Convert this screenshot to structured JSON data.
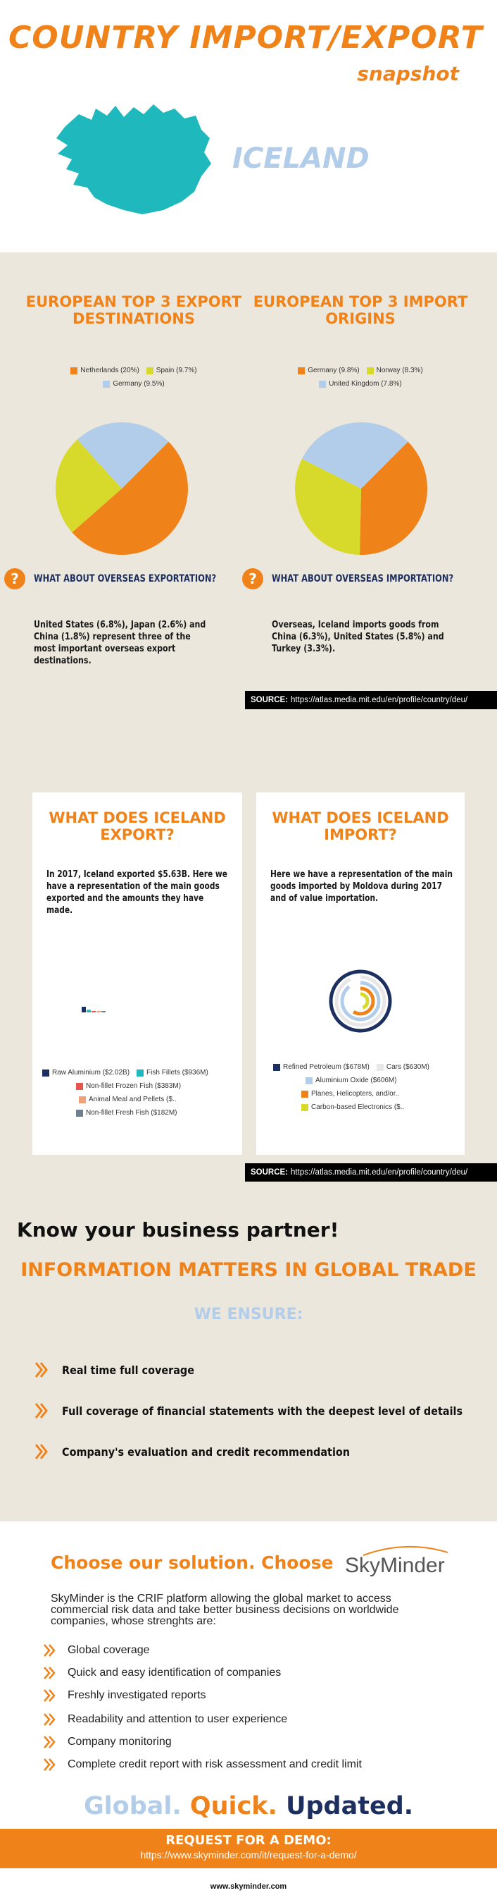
{
  "header": {
    "title": "COUNTRY IMPORT/EXPORT",
    "subtitle": "snapshot",
    "country": "ICELAND"
  },
  "colors": {
    "orange": "#f0821a",
    "yellow": "#d7d92b",
    "lightblue": "#b2cdea",
    "navy": "#1c2f5e",
    "teal": "#1fb9bd",
    "beige": "#ece7dc"
  },
  "export_destinations": {
    "title": "EUROPEAN TOP 3 EXPORT DESTINATIONS",
    "legend": [
      {
        "label": "Netherlands (20%)",
        "color": "#f0821a"
      },
      {
        "label": "Spain (9.7%)",
        "color": "#d7d92b"
      },
      {
        "label": "Germany (9.5%)",
        "color": "#b2cdea"
      }
    ],
    "question": "WHAT ABOUT OVERSEAS EXPORTATION?",
    "text": "United States (6.8%), Japan (2.6%) and China (1.8%) represent three of the most important overseas export destinations."
  },
  "import_origins": {
    "title": "EUROPEAN TOP 3 IMPORT ORIGINS",
    "legend": [
      {
        "label": "Germany (9.8%)",
        "color": "#f0821a"
      },
      {
        "label": "Norway (8.3%)",
        "color": "#d7d92b"
      },
      {
        "label": "United Kingdom (7.8%)",
        "color": "#b2cdea"
      }
    ],
    "question": "WHAT ABOUT OVERSEAS IMPORTATION?",
    "text": "Overseas,  Iceland imports goods from China (6.3%), United States (5.8%) and Turkey (3.3%)."
  },
  "source": {
    "label": "SOURCE:",
    "url": "https://atlas.media.mit.edu/en/profile/country/deu/"
  },
  "export_card": {
    "title": "WHAT DOES ICELAND EXPORT?",
    "text": "In 2017, Iceland exported $5.63B.  Here we have a representation of the main goods exported and the amounts they have made.",
    "legend": [
      {
        "label": "Raw Aluminium ($2.02B)",
        "color": "#1c2f5e"
      },
      {
        "label": "Fish Fillets ($936M)",
        "color": "#1fb9bd"
      },
      {
        "label": "Non-fillet Frozen Fish ($383M)",
        "color": "#e8554e"
      },
      {
        "label": "Animal Meal and Pellets ($..",
        "color": "#f0a07a"
      },
      {
        "label": "Non-fillet Fresh Fish ($182M)",
        "color": "#6f8190"
      }
    ]
  },
  "import_card": {
    "title": "WHAT DOES ICELAND IMPORT?",
    "text": "Here we have a representation of the main goods imported by Moldova during 2017 and of value importation.",
    "legend": [
      {
        "label": "Refined Petroleum ($678M)",
        "color": "#1c2f5e"
      },
      {
        "label": "Cars ($630M)",
        "color": "#e7e7e7"
      },
      {
        "label": "Aluminium Oxide ($606M)",
        "color": "#b2cdea"
      },
      {
        "label": "Planes, Helicopters, and/or..",
        "color": "#f0821a"
      },
      {
        "label": "Carbon-based Electronics ($..",
        "color": "#d7d92b"
      }
    ]
  },
  "chart_data": [
    {
      "type": "pie",
      "categories": [
        "Netherlands",
        "Spain",
        "Germany"
      ],
      "values": [
        20,
        9.7,
        9.5
      ]
    },
    {
      "type": "pie",
      "categories": [
        "Germany",
        "Norway",
        "United Kingdom"
      ],
      "values": [
        9.8,
        8.3,
        7.8
      ]
    },
    {
      "type": "bar",
      "categories": [
        "Raw Aluminium",
        "Fish Fillets",
        "Non-fillet Frozen Fish",
        "Animal Meal and Pellets",
        "Non-fillet Fresh Fish"
      ],
      "values": [
        2020,
        936,
        383,
        250,
        182
      ]
    },
    {
      "type": "pie",
      "categories": [
        "Refined Petroleum",
        "Cars",
        "Aluminium Oxide",
        "Planes, Helicopters, and/or..",
        "Carbon-based Electronics"
      ],
      "values": [
        678,
        630,
        606,
        400,
        300
      ]
    }
  ],
  "partner": {
    "heading": "Know your business partner!",
    "subheading": "INFORMATION MATTERS IN GLOBAL TRADE",
    "ensure_title": "WE ENSURE:",
    "items": [
      "Real time full coverage",
      "Full coverage of financial statements with the deepest level of details",
      "Company's evaluation and credit recommendation"
    ]
  },
  "solution": {
    "title": "Choose our solution. Choose",
    "brand": "SkyMinder",
    "description": "SkyMinder is the CRIF platform allowing the global market to access commercial risk data and take better business decisions on worldwide companies, whose strenghts are:",
    "features": [
      "Global coverage",
      "Quick and easy identification of companies",
      "Freshly investigated reports",
      "Readability and attention to user experience",
      "Company monitoring",
      "Complete credit report with risk assessment and credit limit"
    ],
    "tagline": {
      "word1": "Global.",
      "word2": "Quick.",
      "word3": "Updated."
    },
    "demo_title": "REQUEST FOR A DEMO:",
    "demo_url": "https://www.skyminder.com/it/request-for-a-demo/",
    "footer_url": "www.skyminder.com"
  }
}
